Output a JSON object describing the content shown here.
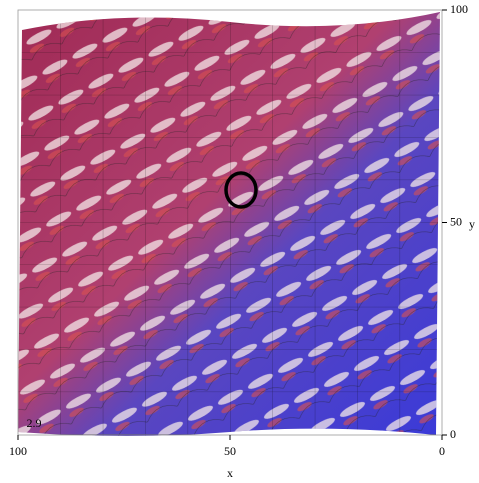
{
  "chart_data": {
    "type": "surface",
    "xlabel": "x",
    "ylabel": "y",
    "xlim": [
      100,
      0
    ],
    "xticks": [
      100,
      50,
      0
    ],
    "ylim": [
      0,
      100
    ],
    "yticks": [
      0,
      50,
      100
    ],
    "zticks": [
      2.9
    ]
  }
}
